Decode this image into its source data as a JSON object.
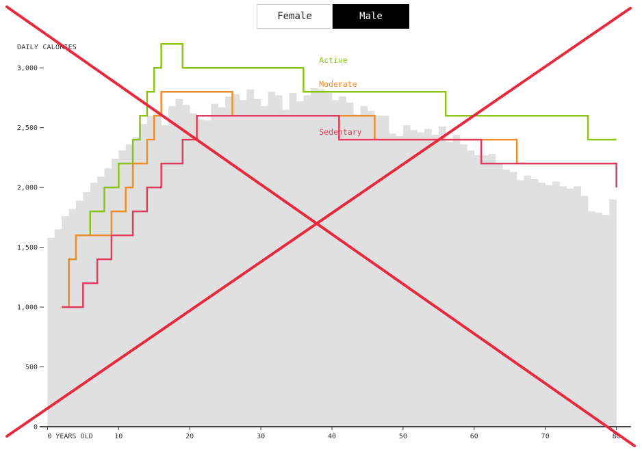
{
  "toggle": {
    "options": [
      "Female",
      "Male"
    ],
    "selected": "Male"
  },
  "chart_data": {
    "type": "step-line-over-histogram",
    "ylabel": "DAILY CALORIES",
    "xlabel_prefix": "YEARS OLD",
    "xlim": [
      -1,
      81
    ],
    "ylim": [
      0,
      3350
    ],
    "x_ticks": [
      0,
      10,
      20,
      30,
      40,
      50,
      60,
      70,
      80
    ],
    "y_ticks": [
      0,
      500,
      1000,
      1500,
      2000,
      2500,
      3000
    ],
    "y_tick_labels": [
      "0",
      "500",
      "1,000",
      "1,500",
      "2,000",
      "2,500",
      "3,000"
    ],
    "histogram": {
      "color": "#e0e0e0",
      "x": [
        1,
        2,
        3,
        4,
        5,
        6,
        7,
        8,
        9,
        10,
        11,
        12,
        13,
        14,
        15,
        16,
        17,
        18,
        19,
        20,
        21,
        22,
        23,
        24,
        25,
        26,
        27,
        28,
        29,
        30,
        31,
        32,
        33,
        34,
        35,
        36,
        37,
        38,
        39,
        40,
        41,
        42,
        43,
        44,
        45,
        46,
        47,
        48,
        49,
        50,
        51,
        52,
        53,
        54,
        55,
        56,
        57,
        58,
        59,
        60,
        61,
        62,
        63,
        64,
        65,
        66,
        67,
        68,
        69,
        70,
        71,
        72,
        73,
        74,
        75,
        76,
        77,
        78,
        79,
        80
      ],
      "values": [
        1580,
        1650,
        1760,
        1820,
        1890,
        1960,
        2040,
        2090,
        2160,
        2240,
        2310,
        2360,
        2420,
        2530,
        2600,
        2620,
        2520,
        2680,
        2740,
        2690,
        2620,
        2570,
        2560,
        2700,
        2670,
        2760,
        2780,
        2730,
        2820,
        2740,
        2680,
        2800,
        2770,
        2650,
        2790,
        2720,
        2770,
        2830,
        2820,
        2790,
        2730,
        2760,
        2710,
        2610,
        2680,
        2640,
        2600,
        2600,
        2450,
        2430,
        2520,
        2480,
        2460,
        2490,
        2440,
        2510,
        2380,
        2440,
        2360,
        2310,
        2270,
        2270,
        2280,
        2200,
        2150,
        2130,
        2060,
        2100,
        2070,
        2040,
        2020,
        2050,
        2010,
        1990,
        2010,
        1930,
        1800,
        1790,
        1770,
        1900
      ]
    },
    "series": [
      {
        "name": "Active",
        "color": "#8cc414",
        "x": [
          2,
          3,
          4,
          6,
          8,
          10,
          12,
          13,
          14,
          15,
          16,
          19,
          36,
          56,
          76,
          80
        ],
        "y": [
          1000,
          1400,
          1600,
          1800,
          2000,
          2200,
          2400,
          2600,
          2800,
          3000,
          3200,
          3000,
          2800,
          2600,
          2400,
          2400
        ]
      },
      {
        "name": "Moderate",
        "color": "#f08c2a",
        "x": [
          2,
          3,
          4,
          6,
          9,
          11,
          12,
          14,
          15,
          16,
          26,
          46,
          66,
          80
        ],
        "y": [
          1000,
          1400,
          1600,
          1600,
          1800,
          2000,
          2200,
          2400,
          2600,
          2800,
          2600,
          2400,
          2200,
          2200
        ]
      },
      {
        "name": "Sedentary",
        "color": "#e23a5e",
        "x": [
          2,
          3,
          5,
          7,
          9,
          12,
          14,
          16,
          19,
          21,
          41,
          61,
          80
        ],
        "y": [
          1000,
          1000,
          1200,
          1400,
          1600,
          1800,
          2000,
          2200,
          2400,
          2600,
          2400,
          2200,
          2000
        ]
      }
    ],
    "overlay": {
      "type": "red-x",
      "color": "#e8283c"
    },
    "grid": false
  }
}
